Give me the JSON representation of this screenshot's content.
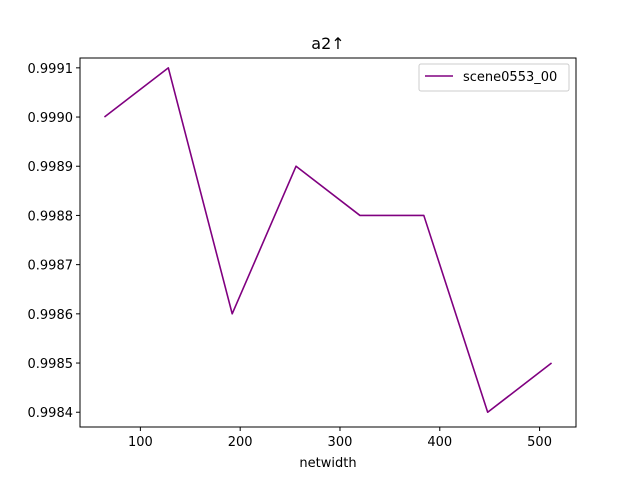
{
  "chart_data": {
    "type": "line",
    "title": "a2↑",
    "xlabel": "netwidth",
    "ylabel": "",
    "xlim": [
      39.5,
      536.5
    ],
    "ylim": [
      0.99837,
      0.99912
    ],
    "xticks": [
      100,
      200,
      300,
      400,
      500
    ],
    "xtick_labels": [
      "100",
      "200",
      "300",
      "400",
      "500"
    ],
    "yticks": [
      0.9984,
      0.9985,
      0.9986,
      0.9987,
      0.9988,
      0.9989,
      0.999,
      0.9991
    ],
    "ytick_labels": [
      "0.9984",
      "0.9985",
      "0.9986",
      "0.9987",
      "0.9988",
      "0.9989",
      "0.9990",
      "0.9991"
    ],
    "grid": false,
    "legend_position": "upper right",
    "series": [
      {
        "name": "scene0553_00",
        "color": "#800080",
        "x": [
          64,
          128,
          192,
          256,
          320,
          384,
          448,
          512
        ],
        "y": [
          0.999,
          0.9991,
          0.9986,
          0.9989,
          0.9988,
          0.9988,
          0.9984,
          0.9985
        ]
      }
    ]
  }
}
